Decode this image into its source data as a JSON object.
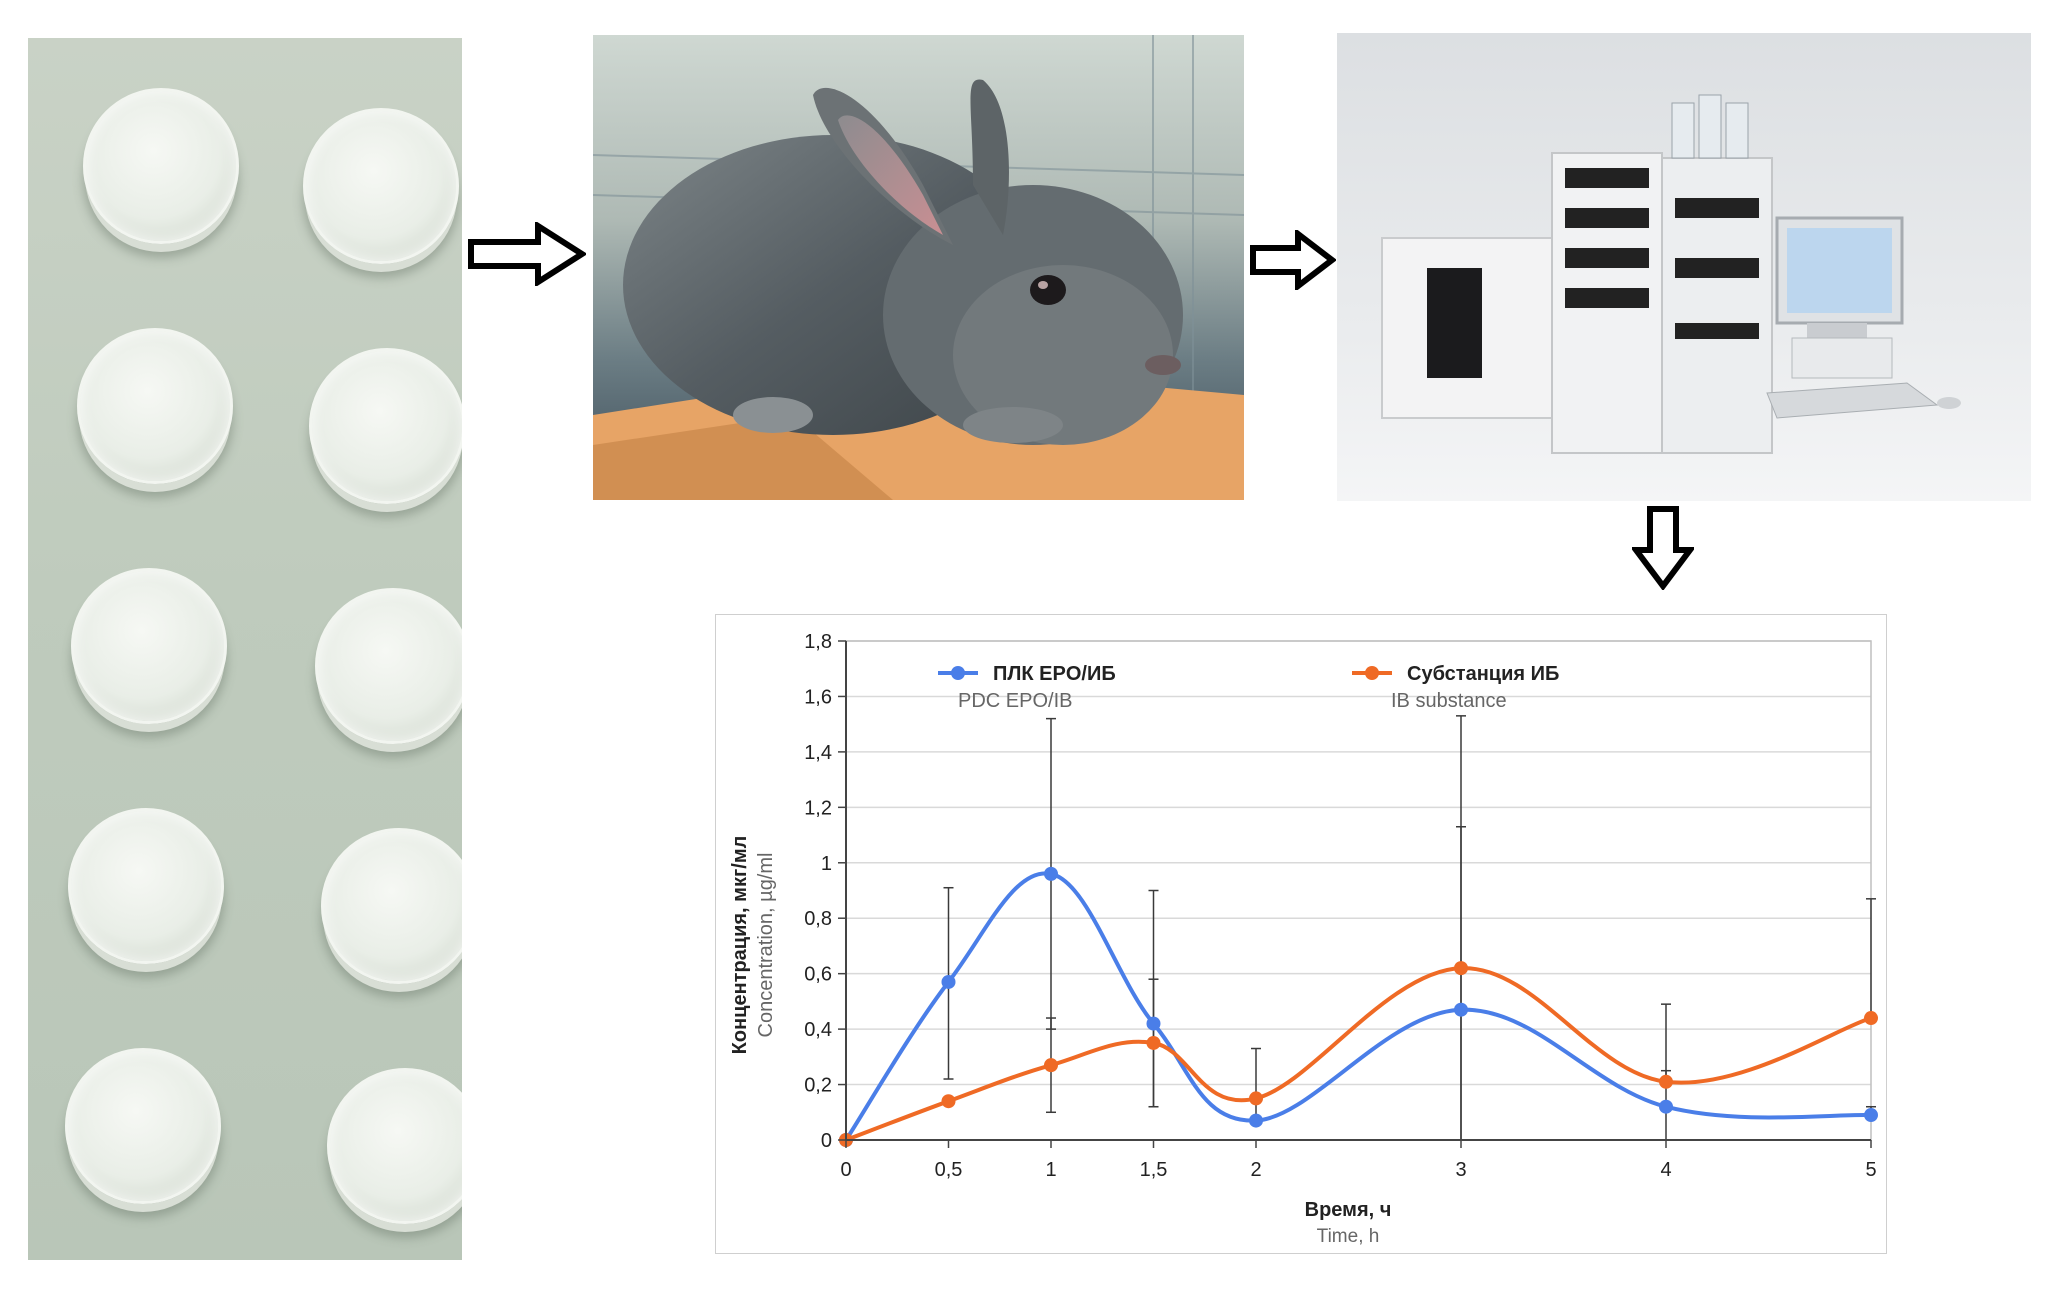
{
  "colors": {
    "series_1": "#4a7ee8",
    "series_2": "#ef6a25",
    "error_bar": "#3a3a3a",
    "grid": "#d9d9d9"
  },
  "icons": [
    "right-arrow-icon",
    "right-arrow-icon",
    "down-arrow-icon"
  ],
  "chart_data": {
    "type": "line",
    "x": [
      0,
      0.5,
      1,
      1.5,
      2,
      3,
      4,
      5
    ],
    "x_tick_labels": [
      "0",
      "0,5",
      "1",
      "1,5",
      "2",
      "3",
      "4",
      "5"
    ],
    "y_tick_labels": [
      "0",
      "0,2",
      "0,4",
      "0,6",
      "0,8",
      "1",
      "1,2",
      "1,4",
      "1,6",
      "1,8"
    ],
    "ylim": [
      0,
      1.8
    ],
    "y_step": 0.2,
    "xlabel": "Время, ч",
    "xlabel_en": "Time, h",
    "ylabel": "Концентрация, мкг/мл",
    "ylabel_en": "Concentration, µg/ml",
    "grid": "horizontal",
    "legend": "top",
    "series": [
      {
        "name": "ПЛК EPO/ИБ",
        "name_en": "PDC EPO/IB",
        "values": [
          0,
          0.57,
          0.96,
          0.42,
          0.07,
          0.47,
          0.12,
          0.09
        ],
        "err_high": [
          0,
          0.91,
          1.52,
          0.9,
          0.33,
          1.13,
          0.49,
          0.12
        ],
        "err_low": [
          0,
          0.22,
          0.4,
          0.12,
          0.07,
          0,
          0,
          0.09
        ]
      },
      {
        "name": "Субстанция ИБ",
        "name_en": "IB substance",
        "values": [
          0,
          0.14,
          0.27,
          0.35,
          0.15,
          0.62,
          0.21,
          0.44
        ],
        "err_high": [
          0,
          0.14,
          0.44,
          0.58,
          0.15,
          1.53,
          0.25,
          0.87
        ],
        "err_low": [
          0,
          0.14,
          0.1,
          0.12,
          0.15,
          0,
          0.21,
          0.44
        ]
      }
    ]
  }
}
